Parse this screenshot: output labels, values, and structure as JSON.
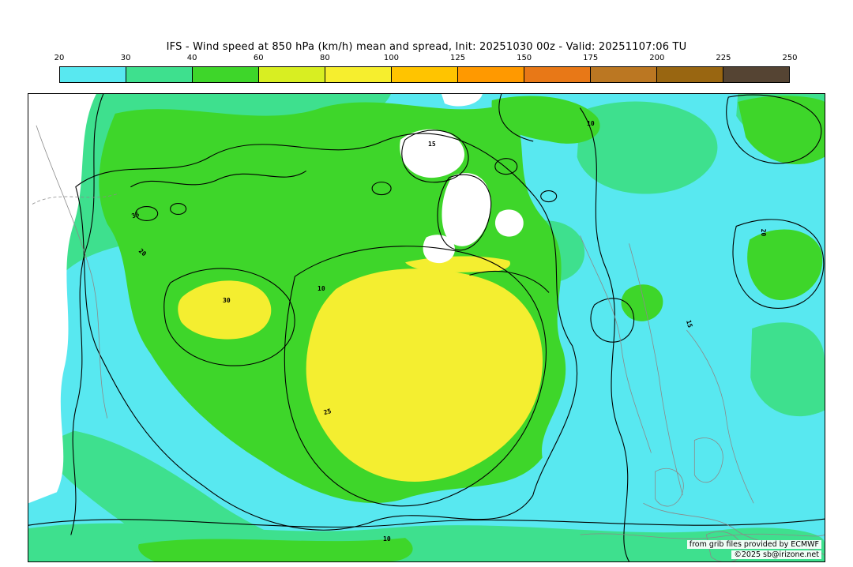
{
  "title": "IFS - Wind speed at 850 hPa (km/h) mean and spread, Init: 20251030 00z - Valid: 20251107:06 TU",
  "colorbar": {
    "tick_labels": [
      "20",
      "30",
      "40",
      "60",
      "80",
      "100",
      "125",
      "150",
      "175",
      "200",
      "225",
      "250"
    ],
    "segment_colors": [
      "#58e8f0",
      "#3ee08e",
      "#3ed62a",
      "#d8ee22",
      "#f6ee2e",
      "#ffc400",
      "#ff9900",
      "#e87817",
      "#bb7722",
      "#996611",
      "#554433"
    ]
  },
  "map": {
    "field_colors": {
      "cyan": "#58e8f0",
      "spring_green": "#3ee08e",
      "green": "#3ed62a",
      "yellow": "#f4ee30",
      "white": "#ffffff"
    },
    "contour_labels": [
      {
        "value": "20"
      },
      {
        "value": "30"
      },
      {
        "value": "25"
      },
      {
        "value": "10"
      },
      {
        "value": "15"
      },
      {
        "value": "20"
      },
      {
        "value": "10"
      },
      {
        "value": "15"
      },
      {
        "value": "10"
      },
      {
        "value": "35"
      }
    ]
  },
  "credits": {
    "provider": "from grib files provided by ECMWF",
    "copyright": "©2025 sb@irizone.net"
  },
  "chart_data": {
    "type": "heatmap",
    "title": "IFS - Wind speed at 850 hPa (km/h) mean and spread",
    "init": "20251030 00z",
    "valid": "20251107:06 TU",
    "units": "km/h",
    "shaded_field": "wind speed mean at 850 hPa",
    "contour_field": "ensemble spread",
    "colorbar_ticks": [
      20,
      30,
      40,
      60,
      80,
      100,
      125,
      150,
      175,
      200,
      225,
      250
    ],
    "contour_label_values_visible": [
      10,
      15,
      20,
      25,
      30,
      35
    ],
    "legend_position": "top"
  }
}
